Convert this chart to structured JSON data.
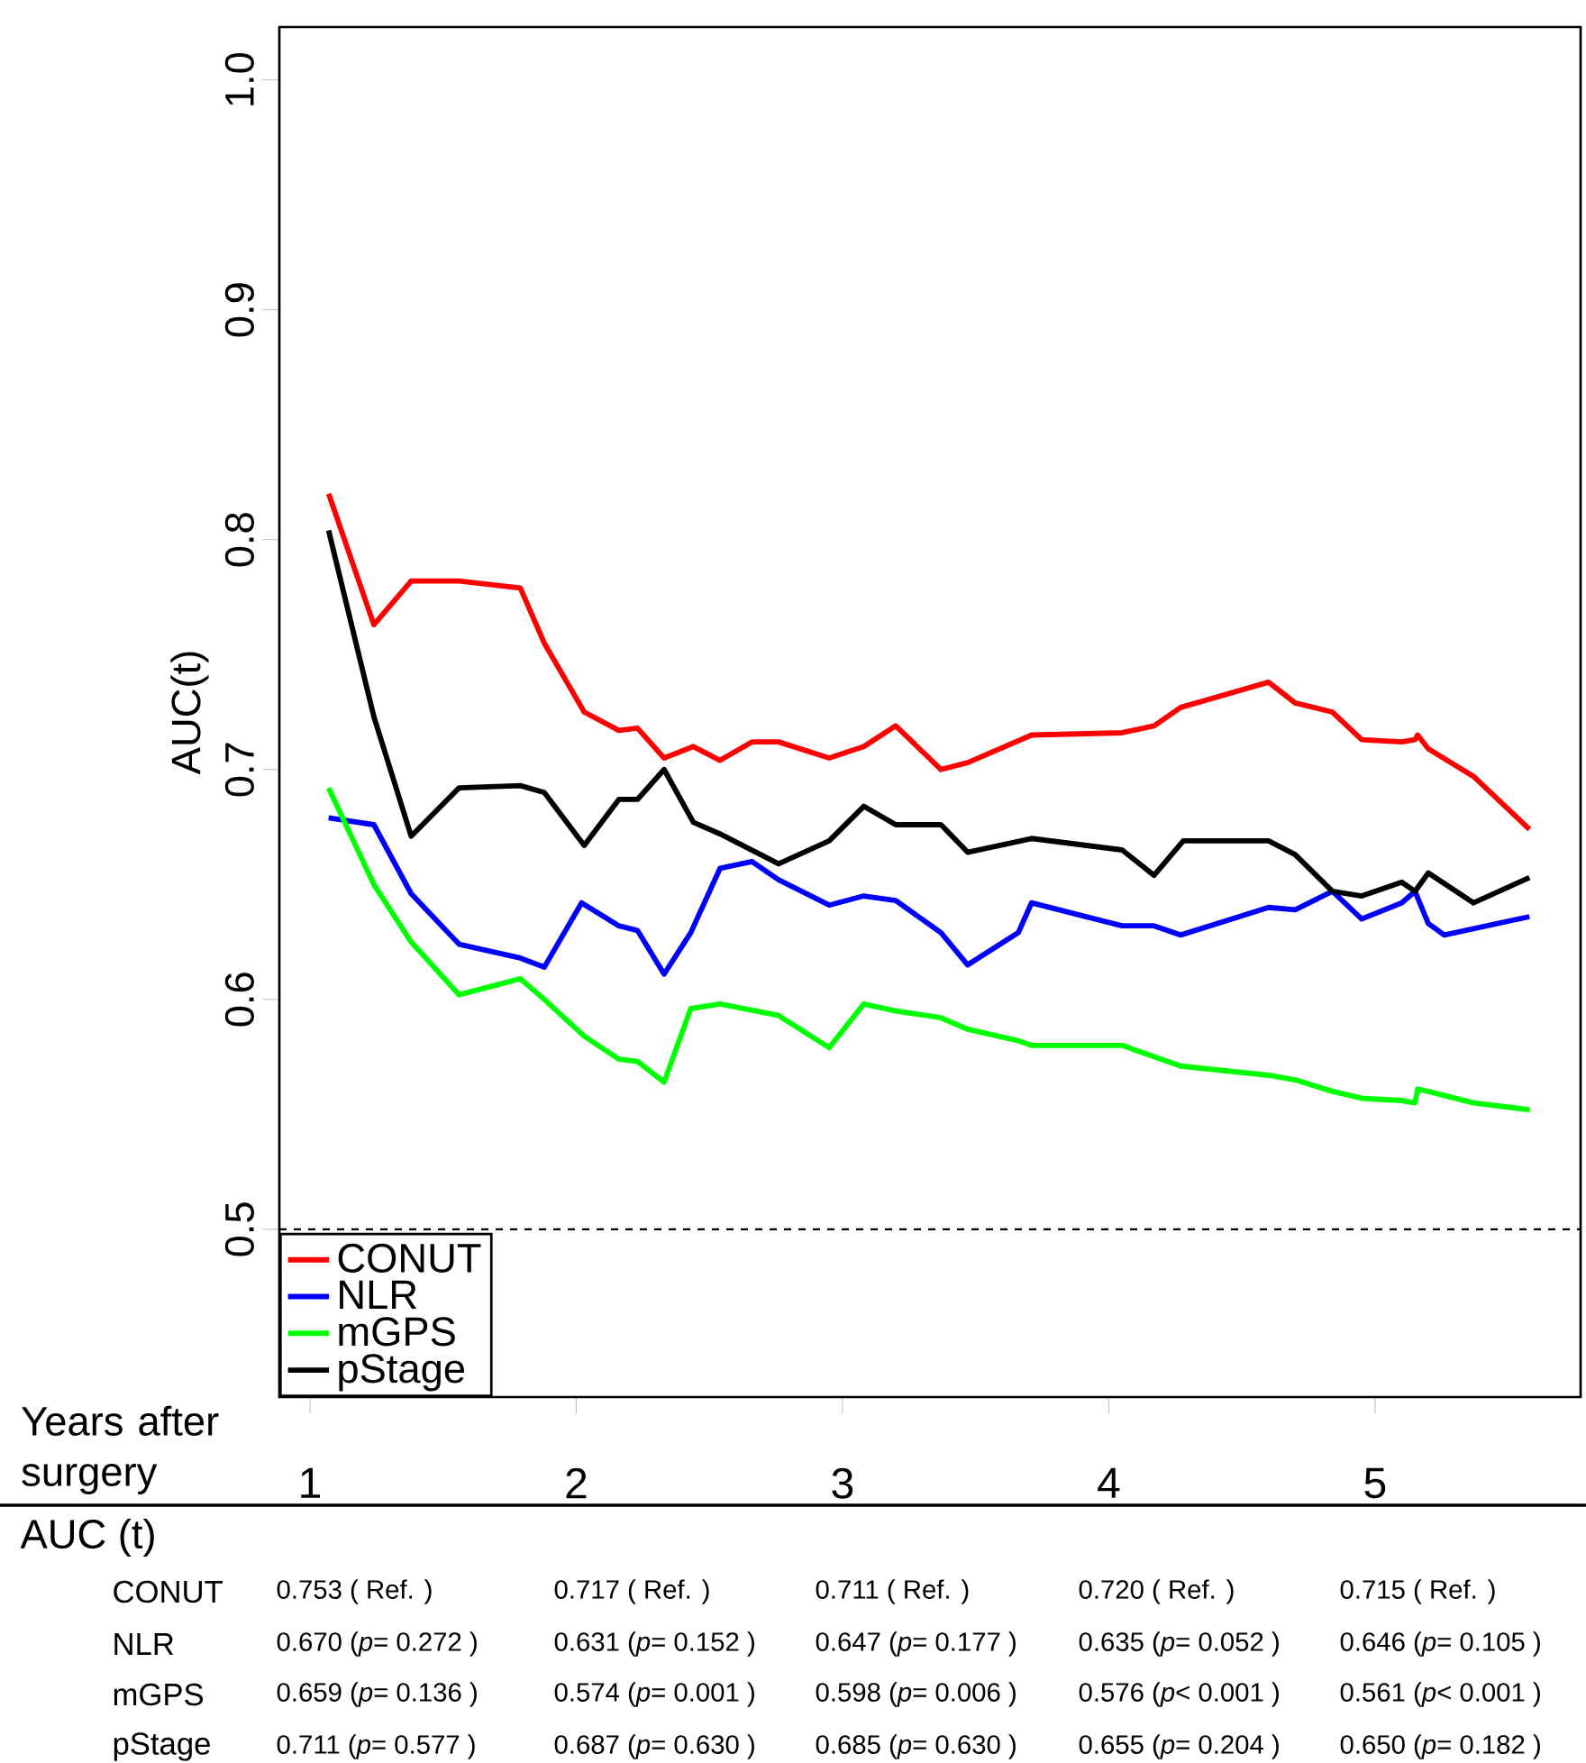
{
  "chart_data": {
    "type": "line",
    "xlabel": "Years after surgery",
    "ylabel": "AUC(t)",
    "xlim": [
      0.885,
      5.772
    ],
    "ylim": [
      0.427,
      1.023
    ],
    "xticks": [
      1,
      2,
      3,
      4,
      5
    ],
    "yticks": [
      0.5,
      0.6,
      0.7,
      0.8,
      0.9,
      {
        "value": 1.0,
        "label": "1.0"
      }
    ],
    "legend": "bottom left",
    "ref_lines": [
      {
        "axis": "y",
        "value": 0.5,
        "line_style": "dashed"
      }
    ],
    "series": [
      {
        "name": "CONUT",
        "color": "#ff0000",
        "x": [
          1.07,
          1.24,
          1.38,
          1.56,
          1.79,
          1.88,
          2.03,
          2.16,
          2.23,
          2.33,
          2.44,
          2.54,
          2.66,
          2.76,
          2.95,
          3.08,
          3.2,
          3.37,
          3.47,
          3.71,
          4.05,
          4.17,
          4.27,
          4.6,
          4.7,
          4.84,
          4.95,
          5.1,
          5.15,
          5.16,
          5.2,
          5.37,
          5.58
        ],
        "values": [
          0.82,
          0.763,
          0.782,
          0.782,
          0.779,
          0.755,
          0.725,
          0.717,
          0.718,
          0.705,
          0.71,
          0.704,
          0.712,
          0.712,
          0.705,
          0.71,
          0.719,
          0.7,
          0.703,
          0.715,
          0.716,
          0.719,
          0.727,
          0.738,
          0.729,
          0.725,
          0.713,
          0.712,
          0.713,
          0.715,
          0.709,
          0.697,
          0.674
        ]
      },
      {
        "name": "NLR",
        "color": "#0000ff",
        "x": [
          1.07,
          1.24,
          1.38,
          1.56,
          1.79,
          1.88,
          2.02,
          2.16,
          2.23,
          2.33,
          2.43,
          2.54,
          2.66,
          2.76,
          2.95,
          3.08,
          3.2,
          3.37,
          3.47,
          3.66,
          3.71,
          4.05,
          4.17,
          4.27,
          4.6,
          4.7,
          4.84,
          4.95,
          5.1,
          5.15,
          5.2,
          5.26,
          5.58
        ],
        "values": [
          0.679,
          0.676,
          0.646,
          0.624,
          0.618,
          0.614,
          0.642,
          0.632,
          0.63,
          0.611,
          0.629,
          0.657,
          0.66,
          0.652,
          0.641,
          0.645,
          0.643,
          0.629,
          0.615,
          0.629,
          0.642,
          0.632,
          0.632,
          0.628,
          0.64,
          0.639,
          0.647,
          0.635,
          0.642,
          0.647,
          0.633,
          0.628,
          0.636
        ]
      },
      {
        "name": "mGPS",
        "color": "#00ff00",
        "x": [
          1.07,
          1.24,
          1.38,
          1.56,
          1.79,
          1.88,
          2.03,
          2.16,
          2.23,
          2.33,
          2.43,
          2.54,
          2.76,
          2.95,
          3.08,
          3.2,
          3.37,
          3.47,
          3.66,
          3.71,
          4.05,
          4.27,
          4.6,
          4.7,
          4.84,
          4.95,
          5.1,
          5.15,
          5.16,
          5.2,
          5.37,
          5.58
        ],
        "values": [
          0.692,
          0.65,
          0.625,
          0.602,
          0.609,
          0.6,
          0.584,
          0.574,
          0.573,
          0.564,
          0.596,
          0.598,
          0.593,
          0.579,
          0.598,
          0.595,
          0.592,
          0.587,
          0.582,
          0.58,
          0.58,
          0.571,
          0.567,
          0.565,
          0.56,
          0.557,
          0.556,
          0.555,
          0.561,
          0.56,
          0.555,
          0.552
        ]
      },
      {
        "name": "pStage",
        "color": "#000000",
        "x": [
          1.07,
          1.24,
          1.38,
          1.56,
          1.79,
          1.88,
          2.03,
          2.16,
          2.23,
          2.33,
          2.44,
          2.54,
          2.76,
          2.95,
          3.08,
          3.2,
          3.37,
          3.47,
          3.71,
          4.05,
          4.17,
          4.28,
          4.6,
          4.7,
          4.84,
          4.95,
          5.1,
          5.15,
          5.2,
          5.37,
          5.58
        ],
        "values": [
          0.804,
          0.723,
          0.671,
          0.692,
          0.693,
          0.69,
          0.667,
          0.687,
          0.687,
          0.7,
          0.677,
          0.672,
          0.659,
          0.669,
          0.684,
          0.676,
          0.676,
          0.664,
          0.67,
          0.665,
          0.654,
          0.669,
          0.669,
          0.663,
          0.647,
          0.645,
          0.651,
          0.647,
          0.655,
          0.642,
          0.653
        ]
      }
    ],
    "annotations": [
      "AUC (t)",
      "CONUT",
      "0.753  ( Ref. )",
      "0.717  ( Ref. )",
      "0.711  ( Ref. )",
      "0.720  ( Ref. )",
      "0.715  ( Ref. )",
      "NLR",
      "0.670  (*p*= 0.272 )",
      "0.631  (*p*= 0.152 )",
      "0.647  (*p*= 0.177 )",
      "0.635  (*p*= 0.052 )",
      "0.646  (*p*= 0.105 )",
      "mGPS",
      "0.659  (*p*= 0.136 )",
      "0.574  (*p*= 0.001 )",
      "0.598  (*p*= 0.006 )",
      "0.576  (*p*< 0.001 )",
      "0.561  (*p*< 0.001 )",
      "pStage",
      "0.711  (*p*= 0.577 )",
      "0.687  (*p*= 0.630 )",
      "0.685  (*p*= 0.630 )",
      "0.655  (*p*= 0.204 )",
      "0.650  (*p*= 0.182 )"
    ]
  }
}
